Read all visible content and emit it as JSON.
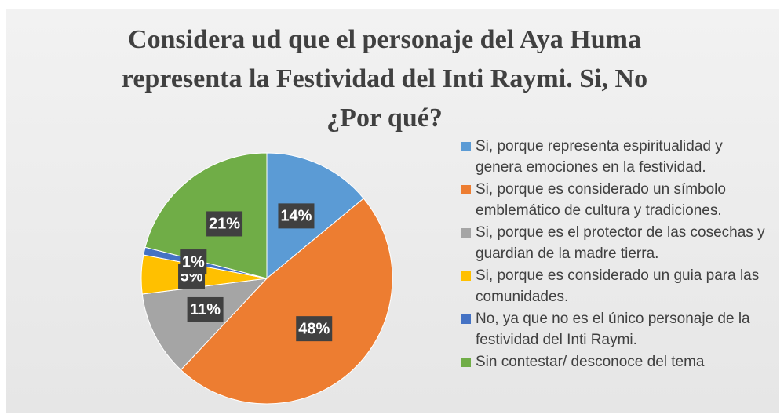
{
  "chart_data": {
    "type": "pie",
    "title": "Considera ud que el personaje del Aya Huma representa la Festividad del Inti Raymi. Si, No ¿Por qué?",
    "categories": [
      "Si, porque representa espiritualidad y genera emociones en la festividad.",
      "Si, porque es considerado un símbolo emblemático de cultura y tradiciones.",
      "Si, porque es el protector de las cosechas y guardian de la madre tierra.",
      "Si, porque es considerado un guia para las comunidades.",
      "No, ya que no es el único personaje de la festividad del Inti Raymi.",
      "Sin contestar/ desconoce del tema"
    ],
    "values": [
      14,
      48,
      11,
      5,
      1,
      21
    ],
    "value_labels": [
      "14%",
      "48%",
      "11%",
      "5%",
      "1%",
      "21%"
    ],
    "colors": [
      "#5b9bd5",
      "#ed7d31",
      "#a5a5a5",
      "#ffc000",
      "#4472c4",
      "#70ad47"
    ],
    "legend": "right"
  }
}
